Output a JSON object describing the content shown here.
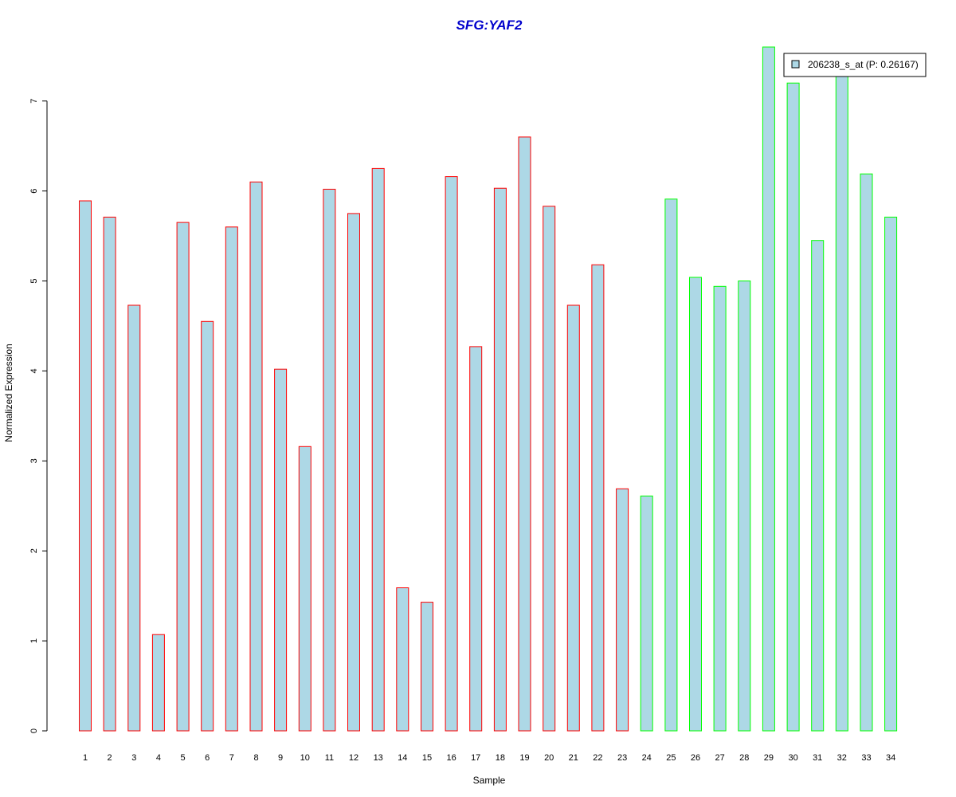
{
  "chart_data": {
    "type": "bar",
    "title": "SFG:YAF2",
    "xlabel": "Sample",
    "ylabel": "Normalized Expression",
    "ylim": [
      0,
      7.6
    ],
    "yticks": [
      0,
      1,
      2,
      3,
      4,
      5,
      6,
      7
    ],
    "categories": [
      "1",
      "2",
      "3",
      "4",
      "5",
      "6",
      "7",
      "8",
      "9",
      "10",
      "11",
      "12",
      "13",
      "14",
      "15",
      "16",
      "17",
      "18",
      "19",
      "20",
      "21",
      "22",
      "23",
      "24",
      "25",
      "26",
      "27",
      "28",
      "29",
      "30",
      "31",
      "32",
      "33",
      "34"
    ],
    "series": [
      {
        "name": "206238_s_at (P: 0.26167)",
        "values": [
          5.89,
          5.71,
          4.73,
          1.07,
          5.65,
          4.55,
          5.6,
          6.1,
          4.02,
          3.16,
          6.02,
          5.75,
          6.25,
          1.59,
          1.43,
          6.16,
          4.27,
          6.03,
          6.6,
          5.83,
          4.73,
          5.18,
          2.69,
          2.61,
          5.91,
          5.04,
          4.94,
          5.0,
          7.6,
          7.2,
          5.45,
          7.3,
          6.19,
          5.71
        ]
      }
    ],
    "group_outline_colors": [
      "#ff0000",
      "#ff0000",
      "#ff0000",
      "#ff0000",
      "#ff0000",
      "#ff0000",
      "#ff0000",
      "#ff0000",
      "#ff0000",
      "#ff0000",
      "#ff0000",
      "#ff0000",
      "#ff0000",
      "#ff0000",
      "#ff0000",
      "#ff0000",
      "#ff0000",
      "#ff0000",
      "#ff0000",
      "#ff0000",
      "#ff0000",
      "#ff0000",
      "#ff0000",
      "#00ff00",
      "#00ff00",
      "#00ff00",
      "#00ff00",
      "#00ff00",
      "#00ff00",
      "#00ff00",
      "#00ff00",
      "#00ff00",
      "#00ff00",
      "#00ff00"
    ],
    "bar_fill": "#add8e6",
    "title_color": "#0000cc",
    "legend_position": "top-right",
    "grid": false
  }
}
